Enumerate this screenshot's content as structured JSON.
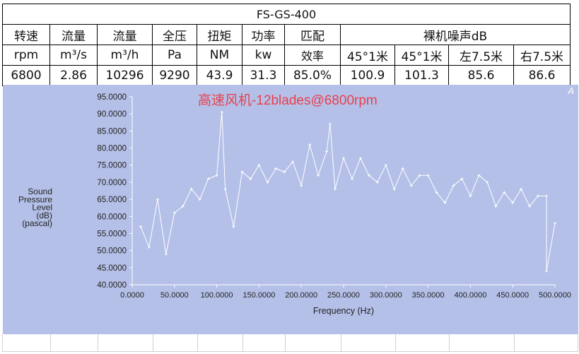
{
  "table": {
    "title": "FS-GS-400",
    "header_row1": [
      "转速",
      "流量",
      "流量",
      "全压",
      "扭矩",
      "功率",
      "匹配",
      "裸机噪声dB"
    ],
    "header_row2": [
      "rpm",
      "m³/s",
      "m³/h",
      "Pa",
      "NM",
      "kw",
      "效率",
      "45°1米",
      "45°1米",
      "左7.5米",
      "右7.5米"
    ],
    "values": [
      "6800",
      "2.86",
      "10296",
      "9290",
      "43.9",
      "31.3",
      "85.0%",
      "100.9",
      "101.3",
      "85.6",
      "86.6"
    ]
  },
  "chart_data": {
    "type": "line",
    "title": "高速风机-12blades@6800rpm",
    "title_color": "#e8404c",
    "corner_mark": "A",
    "xlabel": "Frequency (Hz)",
    "ylabel_lines": [
      "Sound",
      "Pressure",
      "Level",
      "(dB)",
      "(pascal)"
    ],
    "xlim": [
      0,
      500
    ],
    "ylim": [
      40,
      95
    ],
    "xticks": [
      "0.0000",
      "50.0000",
      "100.0000",
      "150.0000",
      "200.0000",
      "250.0000",
      "300.0000",
      "350.0000",
      "400.0000",
      "450.0000",
      "500.0000"
    ],
    "yticks": [
      "95.0000",
      "90.0000",
      "85.0000",
      "80.0000",
      "75.0000",
      "70.0000",
      "65.0000",
      "60.0000",
      "55.0000",
      "50.0000",
      "45.0000",
      "40.0000"
    ],
    "background": "#b5c0e8",
    "line_color": "#ffffff",
    "grid": false,
    "series": [
      {
        "x": [
          10,
          20,
          30,
          40,
          50,
          60,
          70,
          80,
          90,
          100,
          110,
          120,
          130,
          140,
          150,
          160,
          170,
          180,
          190,
          200,
          210,
          220,
          230,
          240,
          250,
          260,
          270,
          280,
          290,
          300,
          310,
          320,
          330,
          340,
          350,
          360,
          370,
          380,
          390,
          400,
          410,
          420,
          430,
          440,
          450,
          460,
          470,
          480,
          490,
          500
        ],
        "values": [
          57,
          51,
          65,
          49,
          61,
          63,
          68,
          65,
          71,
          72,
          68,
          57,
          73,
          71,
          75,
          70,
          74,
          73,
          76,
          69,
          81,
          72,
          79,
          68,
          77,
          71,
          77,
          72,
          70,
          75,
          68,
          74,
          69,
          72,
          72,
          67,
          64,
          69,
          71,
          66,
          72,
          70,
          63,
          67,
          64,
          68,
          63,
          66,
          66,
          58
        ]
      }
    ],
    "peaks": [
      {
        "x": 106,
        "y": 90.5
      },
      {
        "x": 234,
        "y": 87
      },
      {
        "x": 490,
        "y": 44
      }
    ]
  }
}
